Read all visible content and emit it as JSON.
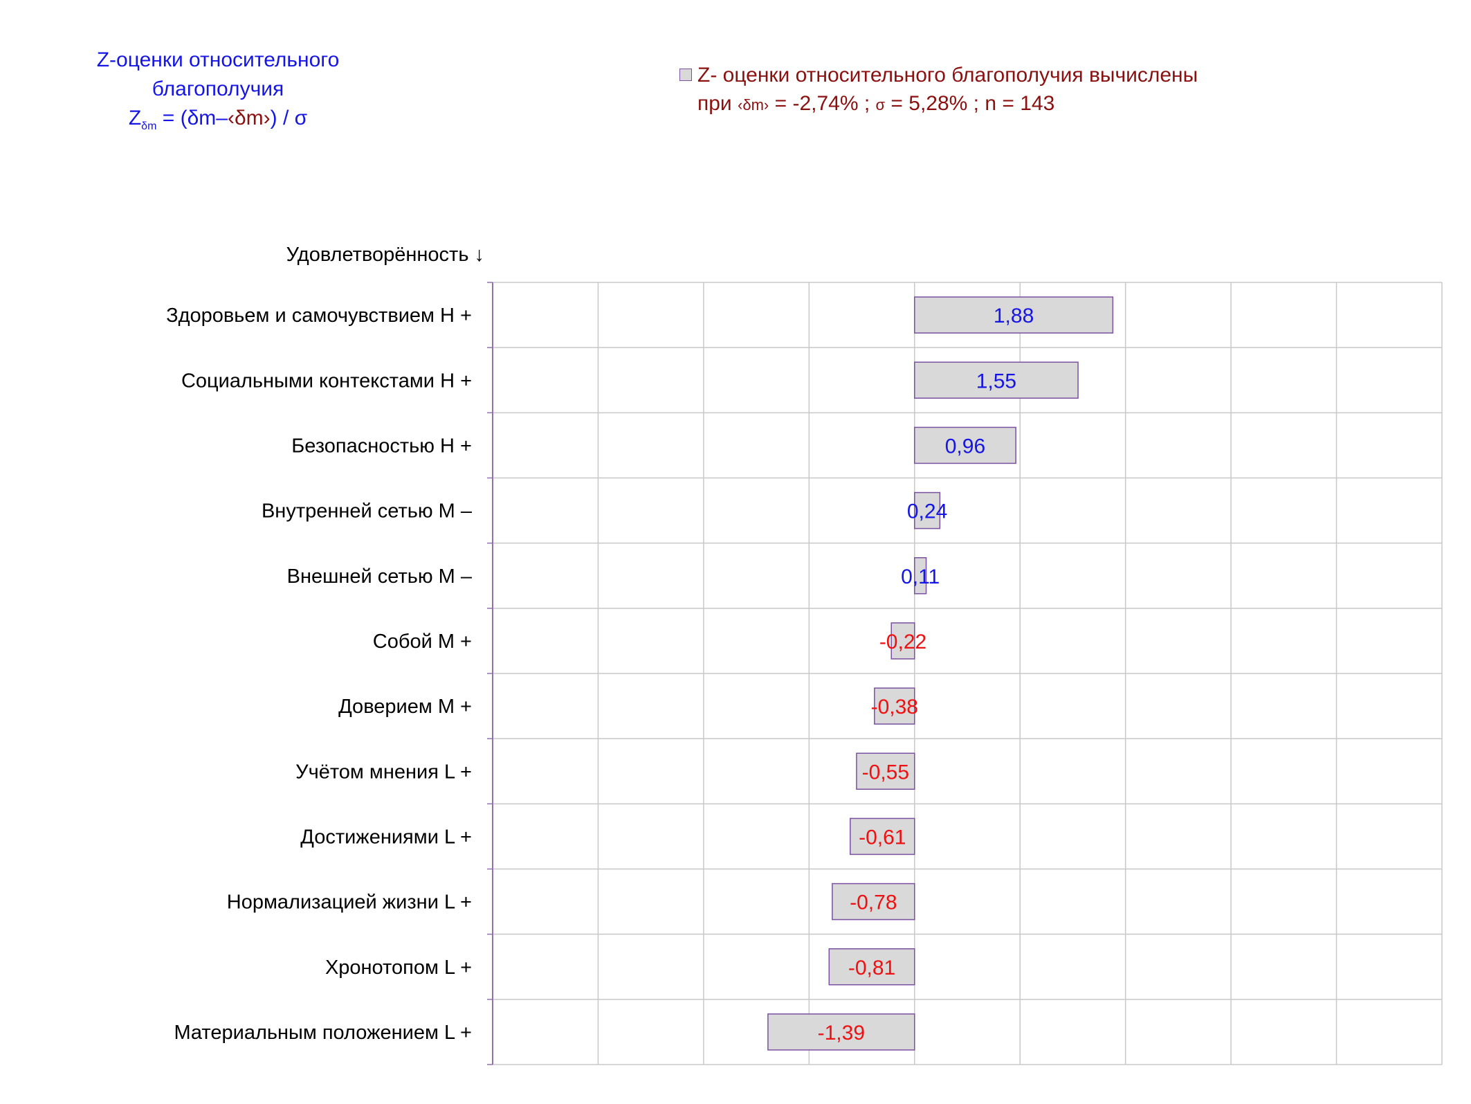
{
  "title": {
    "line1": "Z-оценки  относительного",
    "line2": "благополучия",
    "formula_z": "Z",
    "formula_sub": "δm",
    "formula_eq": " = (δm–",
    "formula_mean": "‹δm›",
    "formula_tail": ") / σ"
  },
  "legend": {
    "line1": "Z- оценки относительного благополучия вычислены",
    "line2_prefix": "при ",
    "line2_mean": "‹δm›",
    "line2_mid": " = -2,74% ; ",
    "line2_sigma": "σ",
    "line2_tail": " = 5,28% ; n = 143"
  },
  "colors": {
    "bar_fill": "#d9d9d9",
    "bar_stroke": "#7a50a0",
    "positive_label": "#1515e6",
    "negative_label": "#ee1111",
    "grid": "#c8c8c8",
    "axis": "#9070b0"
  },
  "chart_data": {
    "type": "bar",
    "orientation": "horizontal",
    "ylabel": "Удовлетворённость ↓",
    "xlim": [
      -4,
      5
    ],
    "grid": true,
    "categories": [
      "Здоровьем и самочувствием  H +",
      "Социальными контекстами  H +",
      "Безопасностью  H +",
      "Внутренней сетью  M –",
      "Внешней сетью  M –",
      "Собой  M +",
      "Доверием  M +",
      "Учётом мнения  L +",
      "Достижениями  L +",
      "Нормализацией жизни  L +",
      "Хронотопом  L +",
      "Материальным положением  L +"
    ],
    "values": [
      1.88,
      1.55,
      0.96,
      0.24,
      0.11,
      -0.22,
      -0.38,
      -0.55,
      -0.61,
      -0.78,
      -0.81,
      -1.39
    ],
    "value_labels": [
      "1,88",
      "1,55",
      "0,96",
      "0,24",
      "0,11",
      "-0,22",
      "-0,38",
      "-0,55",
      "-0,61",
      "-0,78",
      "-0,81",
      "-1,39"
    ],
    "legend": "Z- оценки относительного благополучия вычислены"
  }
}
